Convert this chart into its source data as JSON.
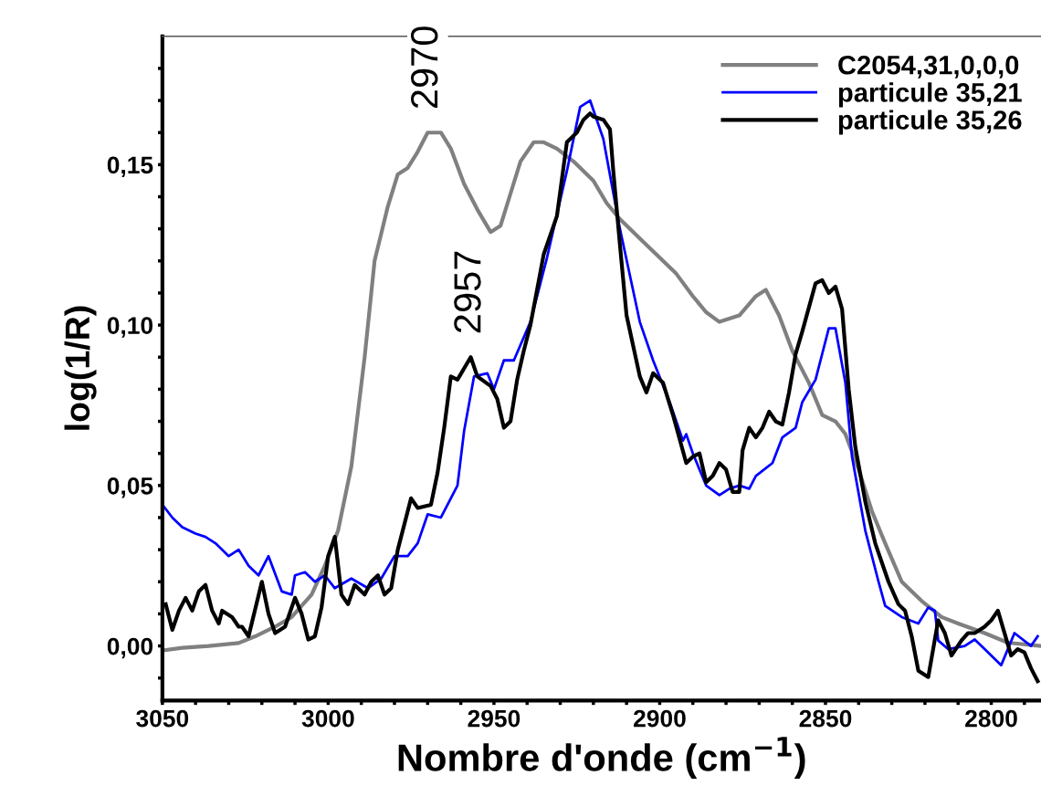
{
  "chart_data": {
    "type": "line",
    "xlabel": "Nombre d'onde (cm$^{−1}$)",
    "ylabel": "log(1/R)",
    "xlim": [
      3050,
      2785
    ],
    "ylim": [
      -0.017,
      0.19
    ],
    "xticks": [
      3050,
      {
        "value": 3040,
        "label": null
      },
      {
        "value": 3030,
        "label": null
      },
      {
        "value": 3020,
        "label": null
      },
      {
        "value": 3010,
        "label": null
      },
      3000,
      {
        "value": 2990,
        "label": null
      },
      {
        "value": 2980,
        "label": null
      },
      {
        "value": 2970,
        "label": null
      },
      {
        "value": 2960,
        "label": null
      },
      2950,
      {
        "value": 2940,
        "label": null
      },
      {
        "value": 2930,
        "label": null
      },
      {
        "value": 2920,
        "label": null
      },
      {
        "value": 2910,
        "label": null
      },
      2900,
      {
        "value": 2890,
        "label": null
      },
      {
        "value": 2880,
        "label": null
      },
      {
        "value": 2870,
        "label": null
      },
      {
        "value": 2860,
        "label": null
      },
      2850,
      {
        "value": 2840,
        "label": null
      },
      {
        "value": 2830,
        "label": null
      },
      {
        "value": 2820,
        "label": null
      },
      {
        "value": 2810,
        "label": null
      },
      2800,
      {
        "value": 2790,
        "label": null
      }
    ],
    "yticks": [
      {
        "value": -0.01,
        "label": null
      },
      {
        "value": 0,
        "label": "0,00"
      },
      {
        "value": 0.01,
        "label": null
      },
      {
        "value": 0.02,
        "label": null
      },
      {
        "value": 0.03,
        "label": null
      },
      {
        "value": 0.04,
        "label": null
      },
      {
        "value": 0.05,
        "label": "0,05"
      },
      {
        "value": 0.06,
        "label": null
      },
      {
        "value": 0.07,
        "label": null
      },
      {
        "value": 0.08,
        "label": null
      },
      {
        "value": 0.09,
        "label": null
      },
      {
        "value": 0.1,
        "label": "0,10"
      },
      {
        "value": 0.11,
        "label": null
      },
      {
        "value": 0.12,
        "label": null
      },
      {
        "value": 0.13,
        "label": null
      },
      {
        "value": 0.14,
        "label": null
      },
      {
        "value": 0.15,
        "label": "0,15"
      },
      {
        "value": 0.16,
        "label": null
      },
      {
        "value": 0.17,
        "label": null
      },
      {
        "value": 0.18,
        "label": null
      }
    ],
    "grid": false,
    "legend": "top right",
    "marker": "none",
    "line_style": "solid",
    "annotations": [
      {
        "text": "2970",
        "x": 2970,
        "y": 0.16
      },
      {
        "text": "2957",
        "x": 2957,
        "y": 0.09
      }
    ],
    "series": [
      {
        "name": "C2054,31,0,0,0",
        "color": "#808080",
        "x": [
          3050,
          3044,
          3036,
          3027,
          3022,
          3016,
          3011,
          3005,
          3001,
          2997,
          2993,
          2989,
          2986,
          2982,
          2979,
          2976,
          2973,
          2970,
          2966,
          2963,
          2959,
          2955,
          2951,
          2948,
          2945,
          2942,
          2938,
          2935,
          2931,
          2926,
          2920,
          2916,
          2912,
          2906,
          2901,
          2895,
          2890,
          2886,
          2882,
          2876,
          2871,
          2868,
          2864,
          2860,
          2855,
          2851,
          2847,
          2844,
          2840,
          2836,
          2832,
          2827,
          2821,
          2815,
          2810,
          2802,
          2795,
          2785
        ],
        "values": [
          -0.0014,
          -0.0006,
          0,
          0.0009,
          0.003,
          0.006,
          0.009,
          0.016,
          0.025,
          0.036,
          0.056,
          0.09,
          0.12,
          0.137,
          0.147,
          0.149,
          0.154,
          0.16,
          0.16,
          0.155,
          0.144,
          0.136,
          0.129,
          0.131,
          0.141,
          0.151,
          0.157,
          0.157,
          0.155,
          0.151,
          0.145,
          0.138,
          0.133,
          0.127,
          0.122,
          0.116,
          0.109,
          0.104,
          0.101,
          0.103,
          0.109,
          0.111,
          0.103,
          0.092,
          0.082,
          0.072,
          0.07,
          0.066,
          0.055,
          0.042,
          0.032,
          0.02,
          0.014,
          0.009,
          0.007,
          0.004,
          0.001,
          0.0
        ]
      },
      {
        "name": "particule 35,21",
        "color": "#0000ff",
        "x": [
          3050,
          3047,
          3044,
          3040,
          3037,
          3034,
          3030,
          3027,
          3024,
          3021,
          3018,
          3014,
          3011,
          3010,
          3007,
          3004,
          3001,
          2998,
          2993,
          2988,
          2984,
          2980,
          2976,
          2973,
          2970,
          2966,
          2961,
          2959,
          2956,
          2952,
          2950,
          2947,
          2944,
          2939,
          2934,
          2928,
          2924,
          2921,
          2917,
          2912,
          2906,
          2902,
          2897,
          2893,
          2892,
          2890,
          2886,
          2882,
          2879,
          2876,
          2873,
          2871,
          2866,
          2863,
          2859,
          2857,
          2853,
          2851,
          2849,
          2847,
          2844,
          2842,
          2838,
          2834,
          2832,
          2827,
          2822,
          2819,
          2817,
          2816,
          2813,
          2808,
          2805,
          2802,
          2797,
          2793,
          2788,
          2786
        ],
        "values": [
          0.044,
          0.04,
          0.037,
          0.035,
          0.034,
          0.032,
          0.028,
          0.03,
          0.025,
          0.022,
          0.028,
          0.017,
          0.016,
          0.022,
          0.023,
          0.02,
          0.022,
          0.018,
          0.021,
          0.018,
          0.021,
          0.028,
          0.028,
          0.032,
          0.041,
          0.04,
          0.05,
          0.067,
          0.084,
          0.085,
          0.08,
          0.089,
          0.089,
          0.101,
          0.121,
          0.148,
          0.168,
          0.17,
          0.158,
          0.13,
          0.101,
          0.089,
          0.076,
          0.064,
          0.066,
          0.06,
          0.05,
          0.047,
          0.049,
          0.05,
          0.049,
          0.053,
          0.057,
          0.065,
          0.068,
          0.076,
          0.083,
          0.091,
          0.099,
          0.099,
          0.082,
          0.059,
          0.036,
          0.02,
          0.0125,
          0.009,
          0.007,
          0.012,
          0.011,
          0.0017,
          -0.001,
          0.0,
          0.002,
          -0.001,
          -0.006,
          0.004,
          0.0,
          0.003
        ]
      },
      {
        "name": "particule 35,26",
        "color": "#000000",
        "x": [
          3049,
          3047,
          3045,
          3043,
          3041,
          3039,
          3037,
          3035,
          3033,
          3032,
          3029,
          3027,
          3026,
          3024,
          3020,
          3018,
          3016,
          3013,
          3010,
          3008,
          3006,
          3004,
          3002,
          3000,
          2998,
          2996,
          2994,
          2992,
          2991,
          2989,
          2987,
          2985,
          2983,
          2981,
          2979,
          2977,
          2975,
          2973,
          2969,
          2967,
          2965,
          2963,
          2961,
          2957,
          2955,
          2951,
          2949,
          2947,
          2945,
          2943,
          2941,
          2939,
          2935,
          2934,
          2931,
          2928,
          2925,
          2923,
          2921,
          2920,
          2917,
          2915,
          2914,
          2912,
          2910,
          2906,
          2904,
          2902,
          2899,
          2896,
          2892,
          2890,
          2888,
          2886,
          2884,
          2882,
          2880,
          2878,
          2876,
          2875,
          2873,
          2871,
          2869,
          2867,
          2865,
          2863,
          2861,
          2859,
          2857,
          2853,
          2851,
          2849,
          2847,
          2845,
          2843,
          2841,
          2838,
          2835,
          2831,
          2828,
          2826,
          2824,
          2822,
          2819,
          2816,
          2814,
          2812,
          2809,
          2807,
          2805,
          2802,
          2800,
          2798,
          2794,
          2792,
          2790,
          2788,
          2786
        ],
        "values": [
          0.013,
          0.005,
          0.011,
          0.015,
          0.011,
          0.017,
          0.019,
          0.011,
          0.007,
          0.011,
          0.009,
          0.006,
          0.006,
          0.003,
          0.02,
          0.01,
          0.004,
          0.006,
          0.015,
          0.01,
          0.002,
          0.003,
          0.012,
          0.028,
          0.034,
          0.016,
          0.013,
          0.019,
          0.018,
          0.016,
          0.02,
          0.022,
          0.016,
          0.018,
          0.03,
          0.038,
          0.046,
          0.043,
          0.044,
          0.054,
          0.068,
          0.084,
          0.083,
          0.09,
          0.084,
          0.081,
          0.077,
          0.068,
          0.07,
          0.083,
          0.092,
          0.1,
          0.122,
          0.125,
          0.134,
          0.157,
          0.16,
          0.164,
          0.166,
          0.165,
          0.164,
          0.161,
          0.148,
          0.125,
          0.103,
          0.084,
          0.079,
          0.085,
          0.082,
          0.072,
          0.057,
          0.059,
          0.06,
          0.051,
          0.053,
          0.057,
          0.055,
          0.048,
          0.048,
          0.061,
          0.068,
          0.065,
          0.068,
          0.073,
          0.07,
          0.069,
          0.079,
          0.091,
          0.098,
          0.113,
          0.114,
          0.11,
          0.112,
          0.105,
          0.08,
          0.062,
          0.045,
          0.032,
          0.02,
          0.013,
          0.011,
          0.003,
          -0.0077,
          -0.0097,
          0.008,
          0.004,
          -0.003,
          0.0017,
          0.004,
          0.004,
          0.006,
          0.008,
          0.011,
          -0.003,
          -0.001,
          -0.002,
          -0.007,
          -0.011
        ]
      }
    ]
  }
}
